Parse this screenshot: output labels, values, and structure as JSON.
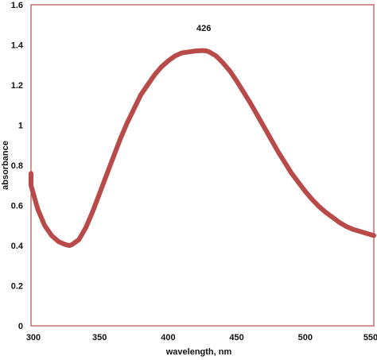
{
  "chart_data": {
    "type": "line",
    "xlabel": "wavelength, nm",
    "ylabel": "absorbance",
    "xlim": [
      300,
      550
    ],
    "ylim": [
      0,
      1.6
    ],
    "x_ticks": [
      300,
      350,
      400,
      450,
      500,
      550
    ],
    "y_ticks": [
      0,
      0.2,
      0.4,
      0.6,
      0.8,
      1,
      1.2,
      1.4,
      1.6
    ],
    "grid": false,
    "legend": "none",
    "line_color": "#b94a4a",
    "annotation": {
      "text": "426",
      "x": 426,
      "y": 1.37
    },
    "series": [
      {
        "x": [
          298,
          300,
          305,
          310,
          315,
          320,
          325,
          328,
          330,
          335,
          340,
          345,
          350,
          355,
          360,
          365,
          370,
          375,
          380,
          385,
          390,
          395,
          400,
          405,
          410,
          415,
          420,
          425,
          428,
          430,
          435,
          440,
          445,
          450,
          455,
          460,
          465,
          470,
          475,
          480,
          485,
          490,
          495,
          500,
          505,
          510,
          515,
          520,
          525,
          530,
          535,
          540,
          545,
          550
        ],
        "y": [
          0.76,
          0.7,
          0.58,
          0.5,
          0.45,
          0.42,
          0.405,
          0.4,
          0.405,
          0.43,
          0.49,
          0.57,
          0.66,
          0.75,
          0.84,
          0.93,
          1.01,
          1.08,
          1.15,
          1.2,
          1.25,
          1.29,
          1.32,
          1.345,
          1.36,
          1.365,
          1.37,
          1.372,
          1.37,
          1.365,
          1.345,
          1.31,
          1.27,
          1.22,
          1.165,
          1.11,
          1.05,
          0.99,
          0.93,
          0.87,
          0.815,
          0.76,
          0.715,
          0.67,
          0.63,
          0.595,
          0.565,
          0.54,
          0.515,
          0.495,
          0.48,
          0.47,
          0.46,
          0.45
        ]
      }
    ]
  }
}
